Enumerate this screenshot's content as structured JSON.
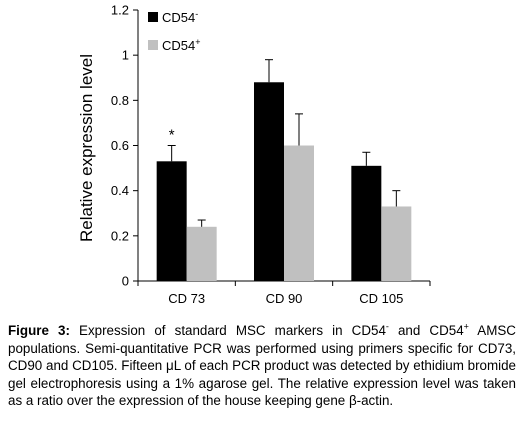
{
  "chart_data": {
    "type": "bar",
    "categories": [
      "CD 73",
      "CD 90",
      "CD 105"
    ],
    "series": [
      {
        "name_base": "CD54",
        "name_sup": "-",
        "color": "#000000",
        "values": [
          0.53,
          0.88,
          0.51
        ],
        "errors": [
          0.07,
          0.1,
          0.06
        ]
      },
      {
        "name_base": "CD54",
        "name_sup": "+",
        "color": "#c0c0c0",
        "values": [
          0.24,
          0.6,
          0.33
        ],
        "errors": [
          0.03,
          0.14,
          0.07
        ]
      }
    ],
    "ylabel": "Relative expression level",
    "ylim": [
      0,
      1.2
    ],
    "yticks": [
      "0",
      "0.2",
      "0.4",
      "0.6",
      "0.8",
      "1",
      "1.2"
    ],
    "annotations": [
      {
        "category": "CD 73",
        "text": "*"
      }
    ],
    "legend": "top-left",
    "grid": false
  },
  "caption": {
    "label": "Figure 3:",
    "p1": " Expression of standard MSC markers in CD54",
    "sup1": "-",
    "p2": " and CD54",
    "sup2": "+",
    "p3": " AMSC populations. Semi-quantitative PCR was performed using primers specific for CD73, CD90 and CD105. Fifteen μL of each PCR product was detected by ethidium bromide gel electrophoresis using a 1% agarose gel. The relative expression level was taken as a ratio over the expression of the house keeping gene β-actin."
  }
}
